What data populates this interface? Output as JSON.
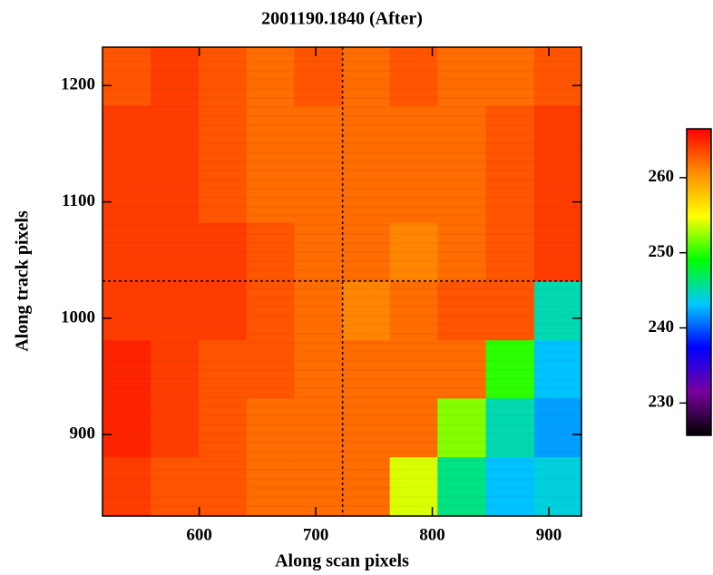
{
  "chart_data": {
    "type": "heatmap",
    "title": "2001190.1840 (After)",
    "x_label": "Along scan pixels",
    "y_label": "Along track pixels",
    "xlim": [
      517,
      928
    ],
    "ylim": [
      830,
      1233
    ],
    "xticks": [
      600,
      700,
      800,
      900
    ],
    "yticks": [
      900,
      1000,
      1100,
      1200
    ],
    "x": [
      538,
      579,
      620,
      661,
      702,
      743,
      784,
      825,
      867,
      908
    ],
    "y": [
      1208,
      1157,
      1107,
      1057,
      1006,
      956,
      906,
      855
    ],
    "z": [
      [
        263,
        264,
        263,
        262,
        263,
        262,
        263,
        262,
        262,
        263
      ],
      [
        264,
        264,
        263,
        262,
        262,
        262,
        262,
        262,
        263,
        264
      ],
      [
        264,
        264,
        263,
        262,
        262,
        262,
        262,
        262,
        263,
        264
      ],
      [
        264,
        264,
        264,
        263,
        262,
        262,
        261,
        262,
        263,
        264
      ],
      [
        264,
        264,
        264,
        263,
        262,
        261,
        262,
        263,
        263,
        245
      ],
      [
        265,
        264,
        263,
        263,
        262,
        262,
        262,
        262,
        250,
        243
      ],
      [
        265,
        264,
        263,
        262,
        262,
        262,
        262,
        252,
        245,
        242
      ],
      [
        264,
        263,
        263,
        262,
        262,
        262,
        254,
        246,
        243,
        244
      ]
    ],
    "clim": [
      225.7,
      266.5
    ],
    "cticks": [
      230,
      240,
      250,
      260
    ],
    "colormap": [
      "#000000",
      "#7a00a0",
      "#0000ff",
      "#00c8ff",
      "#00ff00",
      "#ffff00",
      "#ff8c00",
      "#ff0000"
    ],
    "crosshair": {
      "x": 723,
      "y": 1032
    }
  }
}
